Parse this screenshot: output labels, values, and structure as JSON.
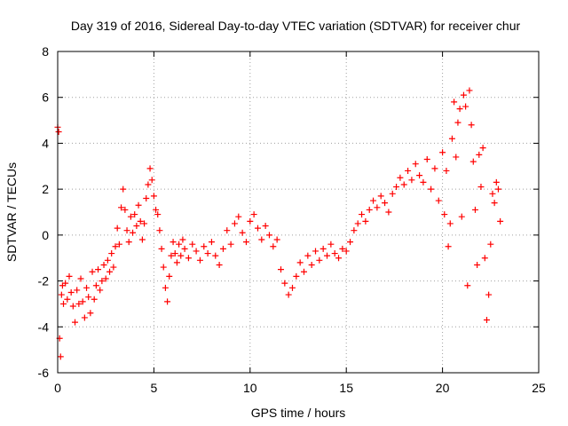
{
  "chart_data": {
    "type": "scatter",
    "title": "Day 319 of 2016, Sidereal Day-to-day VTEC variation (SDTVAR) for receiver chur",
    "xlabel": "GPS time / hours",
    "ylabel": "SDTVAR / TECUs",
    "xlim": [
      0,
      25
    ],
    "ylim": [
      -6,
      8
    ],
    "xticks": [
      0,
      5,
      10,
      15,
      20,
      25
    ],
    "yticks": [
      -6,
      -4,
      -2,
      0,
      2,
      4,
      6,
      8
    ],
    "grid": true,
    "marker": "+",
    "color": "#ff0000",
    "series": [
      {
        "name": "SDTVAR",
        "x": [
          0.0,
          0.05,
          0.1,
          0.15,
          0.2,
          0.25,
          0.3,
          0.4,
          0.5,
          0.6,
          0.7,
          0.8,
          0.9,
          1.0,
          1.1,
          1.2,
          1.3,
          1.4,
          1.5,
          1.6,
          1.7,
          1.8,
          1.9,
          2.0,
          2.1,
          2.2,
          2.3,
          2.4,
          2.5,
          2.6,
          2.7,
          2.8,
          2.9,
          3.0,
          3.1,
          3.2,
          3.3,
          3.4,
          3.5,
          3.6,
          3.7,
          3.8,
          3.9,
          4.0,
          4.1,
          4.2,
          4.3,
          4.4,
          4.5,
          4.6,
          4.7,
          4.8,
          4.9,
          5.0,
          5.1,
          5.2,
          5.3,
          5.4,
          5.5,
          5.6,
          5.7,
          5.8,
          5.9,
          6.0,
          6.1,
          6.2,
          6.3,
          6.4,
          6.5,
          6.6,
          6.8,
          7.0,
          7.2,
          7.4,
          7.6,
          7.8,
          8.0,
          8.2,
          8.4,
          8.6,
          8.8,
          9.0,
          9.2,
          9.4,
          9.6,
          9.8,
          10.0,
          10.2,
          10.4,
          10.6,
          10.8,
          11.0,
          11.2,
          11.4,
          11.6,
          11.8,
          12.0,
          12.2,
          12.4,
          12.6,
          12.8,
          13.0,
          13.2,
          13.4,
          13.6,
          13.8,
          14.0,
          14.2,
          14.4,
          14.6,
          14.8,
          15.0,
          15.2,
          15.4,
          15.6,
          15.8,
          16.0,
          16.2,
          16.4,
          16.6,
          16.8,
          17.0,
          17.2,
          17.4,
          17.6,
          17.8,
          18.0,
          18.2,
          18.4,
          18.6,
          18.8,
          19.0,
          19.2,
          19.4,
          19.6,
          19.8,
          20.0,
          20.1,
          20.2,
          20.3,
          20.4,
          20.5,
          20.6,
          20.7,
          20.8,
          20.9,
          21.0,
          21.1,
          21.2,
          21.3,
          21.4,
          21.5,
          21.6,
          21.7,
          21.8,
          21.9,
          22.0,
          22.1,
          22.2,
          22.3,
          22.4,
          22.5,
          22.6,
          22.7,
          22.8,
          22.9,
          23.0
        ],
        "y": [
          4.7,
          4.5,
          -4.5,
          -5.3,
          -2.6,
          -2.2,
          -3.0,
          -2.1,
          -2.8,
          -1.8,
          -2.5,
          -3.1,
          -3.8,
          -2.4,
          -3.0,
          -1.9,
          -2.9,
          -3.6,
          -2.3,
          -2.7,
          -3.4,
          -1.6,
          -2.8,
          -2.2,
          -1.5,
          -2.4,
          -2.0,
          -1.3,
          -1.9,
          -1.1,
          -1.6,
          -0.8,
          -1.4,
          -0.5,
          0.3,
          -0.4,
          1.2,
          2.0,
          1.1,
          0.2,
          -0.3,
          0.8,
          0.1,
          0.9,
          0.4,
          1.3,
          0.6,
          -0.2,
          0.5,
          1.6,
          2.2,
          2.9,
          2.4,
          1.7,
          1.1,
          0.9,
          0.2,
          -0.6,
          -1.4,
          -2.3,
          -2.9,
          -1.8,
          -0.9,
          -0.3,
          -0.8,
          -1.2,
          -0.4,
          -0.9,
          -0.2,
          -0.6,
          -1.0,
          -0.4,
          -0.7,
          -1.1,
          -0.5,
          -0.8,
          -0.3,
          -0.9,
          -1.3,
          -0.6,
          0.2,
          -0.4,
          0.5,
          0.8,
          0.1,
          -0.3,
          0.6,
          0.9,
          0.3,
          -0.2,
          0.4,
          0.0,
          -0.5,
          -0.2,
          -1.5,
          -2.1,
          -2.6,
          -2.3,
          -1.8,
          -1.2,
          -1.6,
          -0.9,
          -1.3,
          -0.7,
          -1.1,
          -0.6,
          -0.9,
          -0.4,
          -0.8,
          -1.0,
          -0.6,
          -0.7,
          -0.3,
          0.2,
          0.5,
          0.9,
          0.6,
          1.1,
          1.5,
          1.2,
          1.7,
          1.4,
          1.0,
          1.8,
          2.1,
          2.5,
          2.2,
          2.8,
          2.4,
          3.1,
          2.6,
          2.3,
          3.3,
          2.0,
          2.9,
          1.5,
          3.6,
          0.9,
          2.8,
          -0.5,
          0.5,
          4.2,
          5.8,
          3.4,
          4.9,
          5.5,
          0.8,
          6.1,
          5.6,
          -2.2,
          6.3,
          4.8,
          3.2,
          1.1,
          -1.3,
          3.5,
          2.1,
          3.8,
          -1.0,
          -3.7,
          -2.6,
          -0.4,
          1.8,
          1.4,
          2.3,
          2.0,
          0.6
        ]
      }
    ]
  }
}
